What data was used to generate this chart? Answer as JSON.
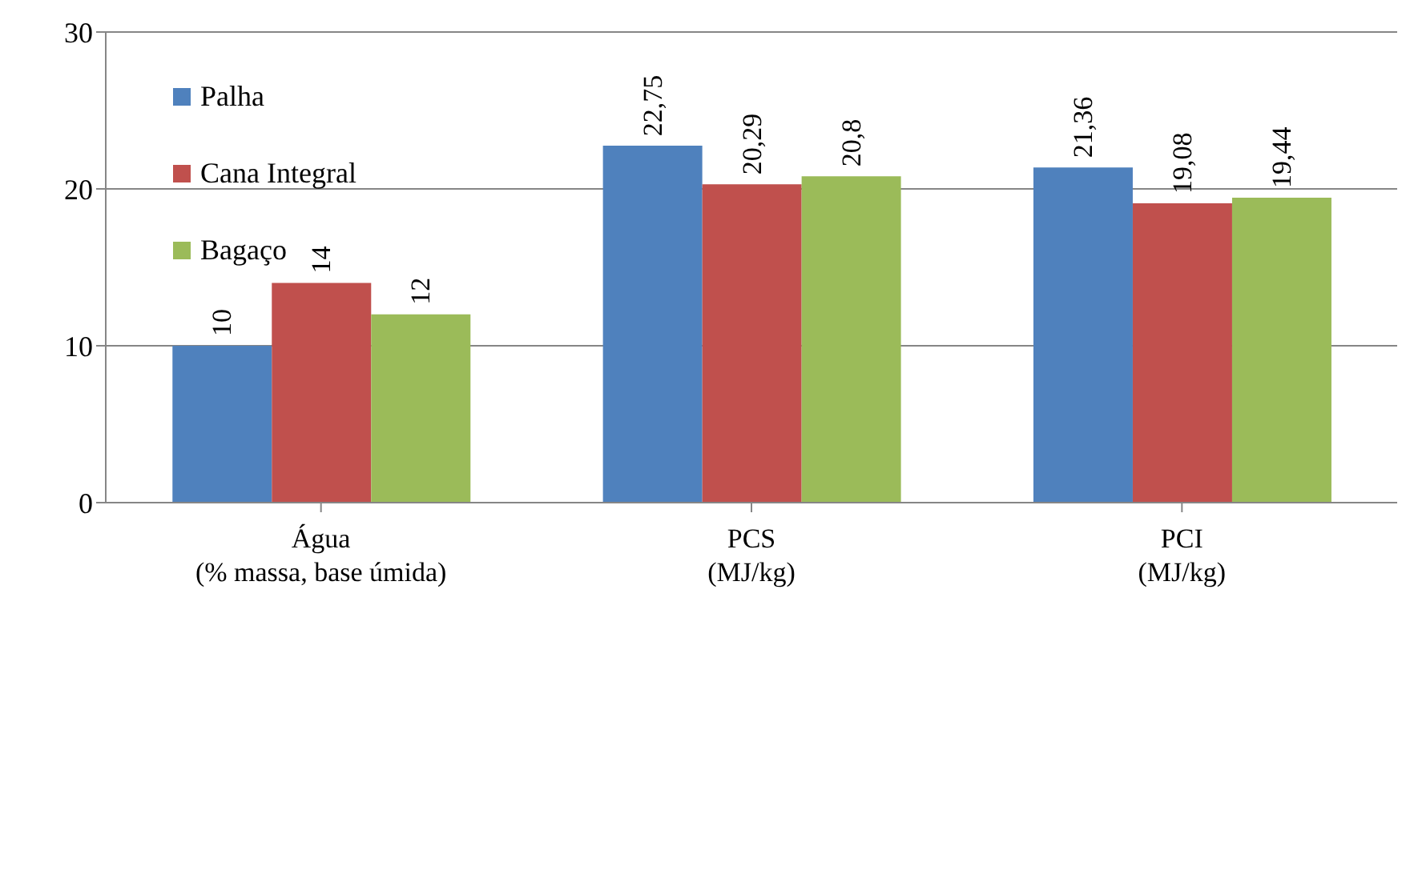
{
  "chart_data": {
    "type": "bar",
    "categories": [
      "Água\n(% massa, base úmida)",
      "PCS\n(MJ/kg)",
      "PCI\n(MJ/kg)"
    ],
    "series": [
      {
        "name": "Palha",
        "color": "#4f81bd",
        "values": [
          10,
          22.75,
          21.36
        ],
        "value_labels": [
          "10",
          "22,75",
          "21,36"
        ]
      },
      {
        "name": "Cana Integral",
        "color": "#c0504d",
        "values": [
          14,
          20.29,
          19.08
        ],
        "value_labels": [
          "14",
          "20,29",
          "19,08"
        ]
      },
      {
        "name": "Bagaço",
        "color": "#9bbb59",
        "values": [
          12,
          20.8,
          19.44
        ],
        "value_labels": [
          "12",
          "20,8",
          "19,44"
        ]
      }
    ],
    "ylim": [
      0,
      30
    ],
    "yticks": [
      0,
      10,
      20,
      30
    ],
    "grid": "y",
    "legend": "top left"
  }
}
